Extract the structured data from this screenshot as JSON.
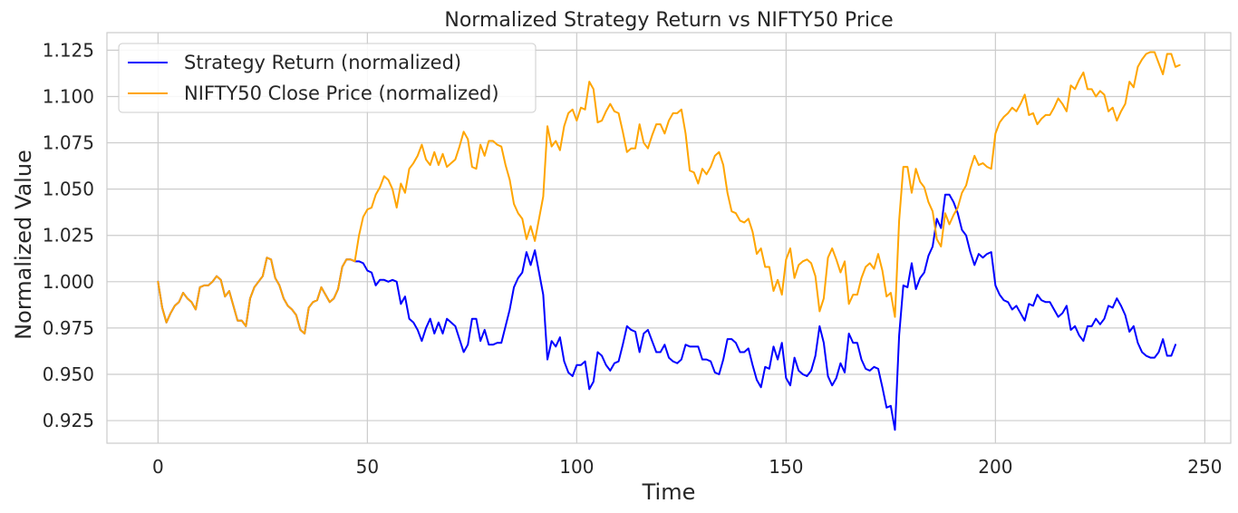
{
  "chart_data": {
    "type": "line",
    "title": "Normalized Strategy Return vs NIFTY50 Price",
    "xlabel": "Time",
    "ylabel": "Normalized Value",
    "xlim": [
      -12.2,
      256.2
    ],
    "ylim": [
      0.9128,
      1.1345
    ],
    "xticks": [
      0,
      50,
      100,
      150,
      200,
      250
    ],
    "yticks": [
      0.925,
      0.95,
      0.975,
      1.0,
      1.025,
      1.05,
      1.075,
      1.1,
      1.125
    ],
    "xtick_labels": [
      "0",
      "50",
      "100",
      "150",
      "200",
      "250"
    ],
    "ytick_labels": [
      "0.925",
      "0.950",
      "0.975",
      "1.000",
      "1.025",
      "1.050",
      "1.075",
      "1.100",
      "1.125"
    ],
    "grid": true,
    "legend_position": "upper-left",
    "series": [
      {
        "name": "Strategy Return (normalized)",
        "color": "#0000ff",
        "x_start": 0,
        "values": [
          1.0,
          0.986,
          0.978,
          0.983,
          0.987,
          0.989,
          0.994,
          0.991,
          0.989,
          0.985,
          0.997,
          0.998,
          0.998,
          1.0,
          1.003,
          1.001,
          0.992,
          0.995,
          0.987,
          0.979,
          0.979,
          0.976,
          0.991,
          0.997,
          1.0,
          1.003,
          1.013,
          1.012,
          1.002,
          0.998,
          0.991,
          0.987,
          0.985,
          0.982,
          0.974,
          0.972,
          0.986,
          0.989,
          0.99,
          0.997,
          0.993,
          0.989,
          0.991,
          0.996,
          1.008,
          1.012,
          1.012,
          1.011,
          1.011,
          1.01,
          1.006,
          1.005,
          0.998,
          1.001,
          1.001,
          1.0,
          1.001,
          1.0,
          0.988,
          0.992,
          0.98,
          0.978,
          0.974,
          0.968,
          0.975,
          0.98,
          0.972,
          0.978,
          0.972,
          0.98,
          0.978,
          0.976,
          0.969,
          0.962,
          0.966,
          0.98,
          0.98,
          0.968,
          0.974,
          0.966,
          0.966,
          0.967,
          0.967,
          0.976,
          0.985,
          0.997,
          1.002,
          1.005,
          1.016,
          1.009,
          1.017,
          1.005,
          0.993,
          0.958,
          0.968,
          0.965,
          0.97,
          0.957,
          0.951,
          0.949,
          0.955,
          0.955,
          0.957,
          0.942,
          0.946,
          0.962,
          0.96,
          0.955,
          0.952,
          0.956,
          0.957,
          0.966,
          0.976,
          0.974,
          0.973,
          0.962,
          0.972,
          0.974,
          0.968,
          0.962,
          0.962,
          0.966,
          0.959,
          0.957,
          0.956,
          0.958,
          0.966,
          0.965,
          0.965,
          0.965,
          0.958,
          0.958,
          0.957,
          0.951,
          0.95,
          0.958,
          0.969,
          0.969,
          0.967,
          0.962,
          0.962,
          0.964,
          0.955,
          0.947,
          0.943,
          0.954,
          0.953,
          0.965,
          0.958,
          0.967,
          0.948,
          0.944,
          0.959,
          0.952,
          0.95,
          0.949,
          0.952,
          0.96,
          0.976,
          0.967,
          0.949,
          0.944,
          0.948,
          0.956,
          0.951,
          0.972,
          0.967,
          0.967,
          0.958,
          0.953,
          0.952,
          0.954,
          0.953,
          0.943,
          0.932,
          0.933,
          0.92,
          0.971,
          0.998,
          0.997,
          1.01,
          0.996,
          1.002,
          1.005,
          1.014,
          1.019,
          1.034,
          1.029,
          1.047,
          1.047,
          1.043,
          1.037,
          1.028,
          1.025,
          1.016,
          1.009,
          1.015,
          1.013,
          1.015,
          1.016,
          0.998,
          0.993,
          0.99,
          0.989,
          0.985,
          0.987,
          0.983,
          0.979,
          0.988,
          0.987,
          0.993,
          0.99,
          0.989,
          0.989,
          0.985,
          0.981,
          0.983,
          0.987,
          0.974,
          0.976,
          0.971,
          0.968,
          0.976,
          0.976,
          0.98,
          0.977,
          0.98,
          0.987,
          0.986,
          0.991,
          0.987,
          0.982,
          0.973,
          0.976,
          0.967,
          0.962,
          0.96,
          0.959,
          0.959,
          0.962,
          0.969,
          0.96,
          0.96,
          0.966
        ]
      },
      {
        "name": "NIFTY50 Close Price (normalized)",
        "color": "#ffa500",
        "x_start": 0,
        "values": [
          1.0,
          0.986,
          0.978,
          0.983,
          0.987,
          0.989,
          0.994,
          0.991,
          0.989,
          0.985,
          0.997,
          0.998,
          0.998,
          1.0,
          1.003,
          1.001,
          0.992,
          0.995,
          0.987,
          0.979,
          0.979,
          0.976,
          0.991,
          0.997,
          1.0,
          1.003,
          1.013,
          1.012,
          1.002,
          0.998,
          0.991,
          0.987,
          0.985,
          0.982,
          0.974,
          0.972,
          0.986,
          0.989,
          0.99,
          0.997,
          0.993,
          0.989,
          0.991,
          0.996,
          1.008,
          1.012,
          1.012,
          1.011,
          1.025,
          1.035,
          1.039,
          1.04,
          1.047,
          1.051,
          1.057,
          1.055,
          1.05,
          1.04,
          1.053,
          1.048,
          1.061,
          1.064,
          1.068,
          1.074,
          1.066,
          1.063,
          1.07,
          1.063,
          1.069,
          1.062,
          1.064,
          1.066,
          1.073,
          1.081,
          1.077,
          1.062,
          1.061,
          1.074,
          1.068,
          1.076,
          1.076,
          1.074,
          1.073,
          1.063,
          1.055,
          1.042,
          1.037,
          1.034,
          1.023,
          1.03,
          1.022,
          1.034,
          1.046,
          1.084,
          1.073,
          1.076,
          1.071,
          1.084,
          1.091,
          1.093,
          1.087,
          1.094,
          1.093,
          1.108,
          1.104,
          1.086,
          1.087,
          1.092,
          1.096,
          1.092,
          1.091,
          1.081,
          1.07,
          1.072,
          1.072,
          1.085,
          1.075,
          1.072,
          1.079,
          1.085,
          1.085,
          1.08,
          1.087,
          1.091,
          1.091,
          1.093,
          1.08,
          1.06,
          1.059,
          1.053,
          1.061,
          1.058,
          1.062,
          1.068,
          1.07,
          1.063,
          1.048,
          1.038,
          1.037,
          1.033,
          1.032,
          1.034,
          1.027,
          1.015,
          1.018,
          1.008,
          1.008,
          0.995,
          1.001,
          0.993,
          1.012,
          1.018,
          1.002,
          1.009,
          1.011,
          1.012,
          1.01,
          1.003,
          0.984,
          0.991,
          1.013,
          1.018,
          1.012,
          1.005,
          1.011,
          0.988,
          0.993,
          0.993,
          1.002,
          1.008,
          1.01,
          1.007,
          1.015,
          1.006,
          0.992,
          0.994,
          0.981,
          1.033,
          1.062,
          1.062,
          1.048,
          1.061,
          1.054,
          1.051,
          1.043,
          1.038,
          1.023,
          1.019,
          1.037,
          1.031,
          1.036,
          1.04,
          1.048,
          1.052,
          1.061,
          1.068,
          1.063,
          1.064,
          1.062,
          1.061,
          1.08,
          1.086,
          1.089,
          1.091,
          1.094,
          1.092,
          1.096,
          1.101,
          1.09,
          1.091,
          1.085,
          1.088,
          1.09,
          1.09,
          1.094,
          1.099,
          1.096,
          1.092,
          1.106,
          1.104,
          1.109,
          1.113,
          1.104,
          1.104,
          1.1,
          1.103,
          1.101,
          1.092,
          1.094,
          1.087,
          1.092,
          1.096,
          1.108,
          1.105,
          1.116,
          1.12,
          1.123,
          1.124,
          1.124,
          1.118,
          1.112,
          1.123,
          1.123,
          1.116,
          1.117
        ]
      }
    ]
  }
}
